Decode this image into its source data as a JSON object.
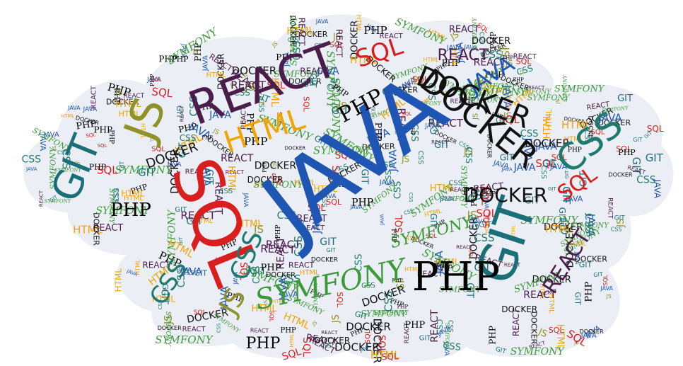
{
  "words": [
    {
      "text": "JAVA",
      "color": "#1f56b3",
      "font": "sans",
      "weight": "normal"
    },
    {
      "text": "SQL",
      "color": "#d81e1e",
      "font": "sans",
      "weight": "normal"
    },
    {
      "text": "REACT",
      "color": "#4a1d4a",
      "font": "sans",
      "weight": "normal"
    },
    {
      "text": "DOCKER",
      "color": "#111111",
      "font": "sans",
      "weight": "normal"
    },
    {
      "text": "GIT",
      "color": "#1a6f78",
      "font": "sans",
      "weight": "normal"
    },
    {
      "text": "JS",
      "color": "#8f9228",
      "font": "sans",
      "weight": "normal"
    },
    {
      "text": "HTML",
      "color": "#f0a500",
      "font": "sans",
      "weight": "normal"
    },
    {
      "text": "CSS",
      "color": "#1e7a6e",
      "font": "sans",
      "weight": "normal"
    },
    {
      "text": "PHP",
      "color": "#000000",
      "font": "serif",
      "weight": "normal"
    },
    {
      "text": "SYMFONY",
      "color": "#3d9a3a",
      "font": "serif",
      "weight": "normal"
    }
  ],
  "cloud": {
    "background": "#eceef5",
    "page_background": "#ffffff"
  }
}
